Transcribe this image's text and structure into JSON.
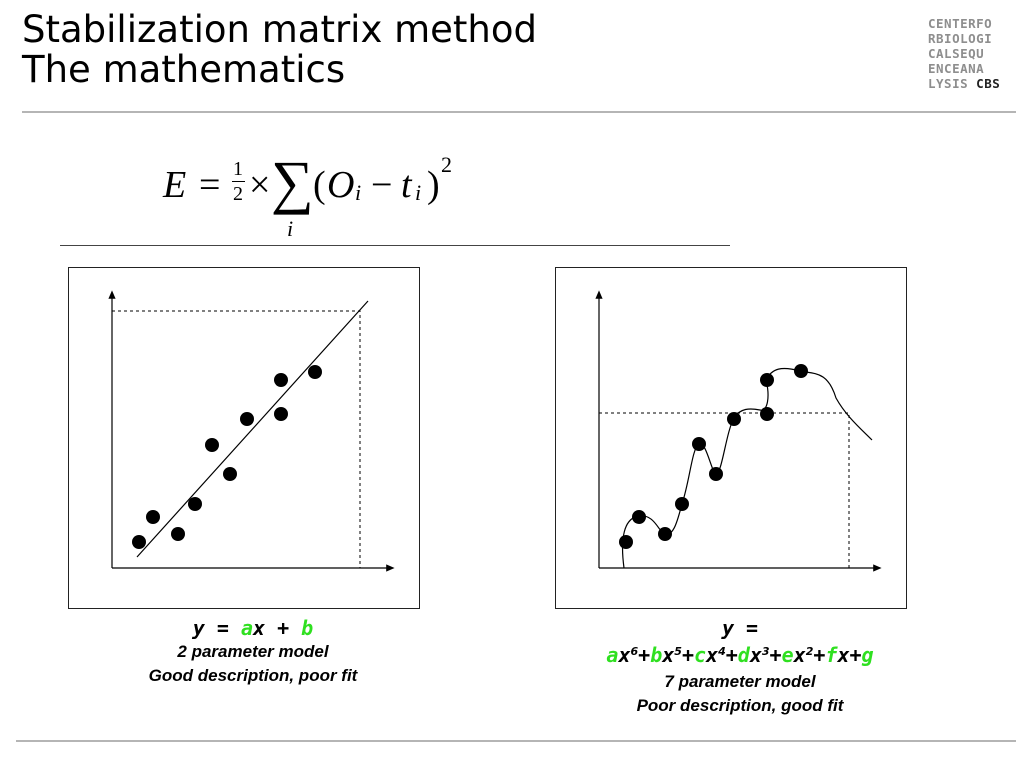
{
  "slide": {
    "title_line1": "Stabilization matrix method",
    "title_line2": "The mathematics"
  },
  "logo": {
    "lines": [
      "CENTERFO",
      "RBIOLOGI",
      "CALSEQU",
      "ENCEANA"
    ],
    "last_line_prefix": "LYSIS",
    "last_line_brand": "CBS"
  },
  "formula": {
    "lhs": "E",
    "equals": "=",
    "frac_num": "1",
    "frac_den": "2",
    "times": "×",
    "sum": "∑",
    "sum_index": "i",
    "open": "(",
    "o": "O",
    "o_sub": "i",
    "minus": "−",
    "t": "t",
    "t_sub": "i",
    "close": ")",
    "power": "2"
  },
  "left_model": {
    "eq": {
      "prefix": "y = ",
      "a": "a",
      "mid": "x + ",
      "b": "b"
    },
    "line1": "2 parameter model",
    "line2": "Good description, poor fit"
  },
  "right_model": {
    "eq_line1": "y =",
    "terms": [
      {
        "coef": "a",
        "var": "x",
        "exp": "6",
        "op": "+"
      },
      {
        "coef": "b",
        "var": "x",
        "exp": "5",
        "op": "+"
      },
      {
        "coef": "c",
        "var": "x",
        "exp": "4",
        "op": "+"
      },
      {
        "coef": "d",
        "var": "x",
        "exp": "3",
        "op": "+"
      },
      {
        "coef": "e",
        "var": "x",
        "exp": "2",
        "op": "+"
      },
      {
        "coef": "f",
        "var": "x",
        "exp": "",
        "op": "+"
      },
      {
        "coef": "g",
        "var": "",
        "exp": "",
        "op": ""
      }
    ],
    "line1": "7 parameter model",
    "line2": "Poor description, good fit"
  },
  "colors": {
    "coefficient": "#2fe020",
    "rule": "#b5b5b5",
    "logo": "#8e8e8e"
  },
  "plots": {
    "left_points": [
      [
        0.08,
        0.1
      ],
      [
        0.12,
        0.17
      ],
      [
        0.2,
        0.14
      ],
      [
        0.24,
        0.22
      ],
      [
        0.3,
        0.4
      ],
      [
        0.35,
        0.3
      ],
      [
        0.4,
        0.48
      ],
      [
        0.5,
        0.49
      ],
      [
        0.5,
        0.57
      ],
      [
        0.6,
        0.59
      ]
    ],
    "left_fit": [
      [
        0.07,
        0.03
      ],
      [
        0.76,
        0.86
      ]
    ],
    "right_points": [
      [
        0.08,
        0.1
      ],
      [
        0.12,
        0.18
      ],
      [
        0.2,
        0.14
      ],
      [
        0.24,
        0.22
      ],
      [
        0.3,
        0.4
      ],
      [
        0.35,
        0.3
      ],
      [
        0.4,
        0.48
      ],
      [
        0.5,
        0.49
      ],
      [
        0.5,
        0.57
      ],
      [
        0.6,
        0.59
      ]
    ]
  }
}
